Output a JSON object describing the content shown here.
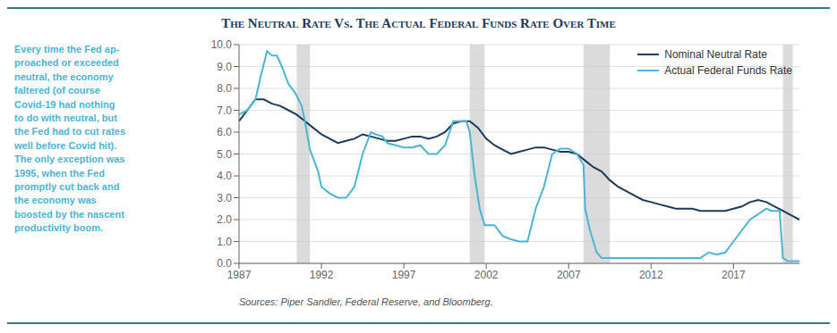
{
  "chart_data": {
    "type": "line",
    "title": "The Neutral Rate Vs. The Actual Federal Funds Rate Over Time",
    "annotation": "Every time the Fed ap-\nproached or exceeded\nneutral, the economy\nfaltered (of course\nCovid-19 had nothing\nto do with neutral, but\nthe Fed had to cut rates\nwell before Covid hit).\nThe only exception was\n1995, when the Fed\npromptly cut back and\nthe economy was\nboosted by the nascent\nproductivity boom.",
    "source": "Sources: Piper Sandler, Federal Reserve, and Bloomberg.",
    "xlim": [
      1987.0,
      2021.0
    ],
    "xticks": [
      1987,
      1992,
      1997,
      2002,
      2007,
      2012,
      2017
    ],
    "ylim": [
      0.0,
      10.0
    ],
    "yticks": [
      {
        "value": 0.0,
        "label": "0.0"
      },
      {
        "value": 1.0,
        "label": "1.0"
      },
      {
        "value": 2.0,
        "label": "2.0"
      },
      {
        "value": 3.0,
        "label": "3.0"
      },
      {
        "value": 4.0,
        "label": "4.0"
      },
      {
        "value": 5.0,
        "label": "5.0"
      },
      {
        "value": 6.0,
        "label": "6.0"
      },
      {
        "value": 7.0,
        "label": "7.0"
      },
      {
        "value": 8.0,
        "label": "8.0"
      },
      {
        "value": 9.0,
        "label": "9.0"
      },
      {
        "value": 10.0,
        "label": "10.0"
      }
    ],
    "grid": true,
    "legend": "upper right",
    "recession_bands": [
      [
        1990.5,
        1991.3
      ],
      [
        2001.0,
        2001.9
      ],
      [
        2007.9,
        2009.5
      ],
      [
        2020.0,
        2020.6
      ]
    ],
    "series": [
      {
        "name": "Nominal Neutral Rate",
        "color": "#1b3a5c",
        "x": [
          1987.0,
          1987.5,
          1988.0,
          1988.5,
          1989.0,
          1989.5,
          1990.0,
          1990.5,
          1991.0,
          1991.5,
          1992.0,
          1992.5,
          1993.0,
          1993.5,
          1994.0,
          1994.5,
          1995.0,
          1995.5,
          1996.0,
          1996.5,
          1997.0,
          1997.5,
          1998.0,
          1998.5,
          1999.0,
          1999.5,
          2000.0,
          2000.5,
          2001.0,
          2001.5,
          2002.0,
          2002.5,
          2003.0,
          2003.5,
          2004.0,
          2004.5,
          2005.0,
          2005.5,
          2006.0,
          2006.5,
          2007.0,
          2007.5,
          2008.0,
          2008.5,
          2009.0,
          2009.5,
          2010.0,
          2010.5,
          2011.0,
          2011.5,
          2012.0,
          2012.5,
          2013.0,
          2013.5,
          2014.0,
          2014.5,
          2015.0,
          2015.5,
          2016.0,
          2016.5,
          2017.0,
          2017.5,
          2018.0,
          2018.5,
          2019.0,
          2019.5,
          2020.0,
          2020.5,
          2021.0
        ],
        "values": [
          6.5,
          7.0,
          7.5,
          7.5,
          7.3,
          7.2,
          7.0,
          6.8,
          6.5,
          6.2,
          5.9,
          5.7,
          5.5,
          5.6,
          5.7,
          5.9,
          5.8,
          5.7,
          5.6,
          5.6,
          5.7,
          5.8,
          5.8,
          5.7,
          5.8,
          6.0,
          6.4,
          6.5,
          6.5,
          6.2,
          5.7,
          5.4,
          5.2,
          5.0,
          5.1,
          5.2,
          5.3,
          5.3,
          5.2,
          5.1,
          5.1,
          5.0,
          4.7,
          4.4,
          4.2,
          3.8,
          3.5,
          3.3,
          3.1,
          2.9,
          2.8,
          2.7,
          2.6,
          2.5,
          2.5,
          2.5,
          2.4,
          2.4,
          2.4,
          2.4,
          2.5,
          2.6,
          2.8,
          2.9,
          2.8,
          2.6,
          2.4,
          2.2,
          2.0
        ]
      },
      {
        "name": "Actual Federal Funds Rate",
        "color": "#4ab5d4",
        "x": [
          1987.0,
          1987.5,
          1988.0,
          1988.3,
          1988.7,
          1989.0,
          1989.3,
          1989.6,
          1990.0,
          1990.4,
          1990.8,
          1991.0,
          1991.3,
          1991.8,
          1992.0,
          1992.5,
          1993.0,
          1993.5,
          1994.0,
          1994.5,
          1995.0,
          1995.3,
          1995.7,
          1996.0,
          1996.5,
          1997.0,
          1997.5,
          1998.0,
          1998.5,
          1999.0,
          1999.5,
          2000.0,
          2000.3,
          2000.8,
          2001.0,
          2001.3,
          2001.6,
          2001.9,
          2002.0,
          2002.5,
          2003.0,
          2003.5,
          2004.0,
          2004.5,
          2005.0,
          2005.5,
          2006.0,
          2006.5,
          2007.0,
          2007.5,
          2007.9,
          2008.0,
          2008.3,
          2008.7,
          2009.0,
          2009.5,
          2010.0,
          2010.5,
          2011.0,
          2011.5,
          2012.0,
          2012.5,
          2013.0,
          2013.5,
          2014.0,
          2014.5,
          2015.0,
          2015.5,
          2016.0,
          2016.5,
          2017.0,
          2017.5,
          2018.0,
          2018.5,
          2019.0,
          2019.3,
          2019.8,
          2020.0,
          2020.3,
          2020.6,
          2021.0
        ],
        "values": [
          6.8,
          7.0,
          7.5,
          8.5,
          9.7,
          9.5,
          9.5,
          9.0,
          8.2,
          7.8,
          7.2,
          6.5,
          5.2,
          4.2,
          3.5,
          3.2,
          3.0,
          3.0,
          3.5,
          5.0,
          6.0,
          5.9,
          5.8,
          5.5,
          5.4,
          5.3,
          5.3,
          5.4,
          5.0,
          5.0,
          5.4,
          6.5,
          6.5,
          6.5,
          6.0,
          4.0,
          2.5,
          1.75,
          1.75,
          1.75,
          1.25,
          1.1,
          1.0,
          1.0,
          2.5,
          3.5,
          5.0,
          5.25,
          5.25,
          5.0,
          4.5,
          2.5,
          1.5,
          0.5,
          0.25,
          0.25,
          0.25,
          0.25,
          0.25,
          0.25,
          0.25,
          0.25,
          0.25,
          0.25,
          0.25,
          0.25,
          0.25,
          0.5,
          0.4,
          0.5,
          1.0,
          1.5,
          2.0,
          2.25,
          2.5,
          2.4,
          2.4,
          0.25,
          0.1,
          0.1,
          0.1
        ]
      }
    ]
  }
}
